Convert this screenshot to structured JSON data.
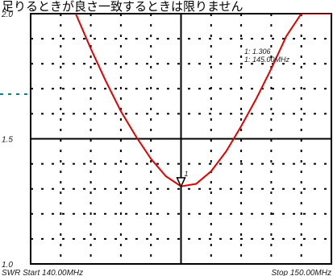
{
  "header_text": "足りるときが良さ一致するときは限りません",
  "colors": {
    "trace": "#e00000",
    "frame": "#000000",
    "grid": "#000000",
    "reference_marker": "#00838f"
  },
  "marker_readout": {
    "line1": "1:  1.306",
    "line2": "1:  145.00MHz",
    "marker_id": "1"
  },
  "footer": {
    "left": "SWR Start  140.00MHz",
    "right": "Stop  150.00MHz"
  },
  "chart_data": {
    "type": "line",
    "title": "",
    "xlabel": "",
    "ylabel": "SWR",
    "xlim": [
      140.0,
      150.0
    ],
    "ylim": [
      1.0,
      2.0
    ],
    "y_tick_labels": [
      "2.0",
      "1.5",
      "1.0"
    ],
    "grid": true,
    "grid_style": "dotted",
    "x_divisions": 10,
    "y_divisions": 10,
    "series": [
      {
        "x": [
          141.5,
          142.0,
          142.5,
          143.0,
          143.5,
          144.0,
          144.5,
          145.0,
          145.5,
          146.0,
          146.5,
          147.0,
          147.5,
          148.0,
          148.5,
          149.0,
          149.5,
          150.0
        ],
        "y": [
          2.0,
          1.86,
          1.73,
          1.61,
          1.51,
          1.42,
          1.35,
          1.31,
          1.32,
          1.37,
          1.45,
          1.55,
          1.66,
          1.78,
          1.91,
          2.0,
          2.0,
          2.0
        ]
      }
    ],
    "markers": [
      {
        "id": "1",
        "x": 145.0,
        "y": 1.306
      }
    ]
  }
}
